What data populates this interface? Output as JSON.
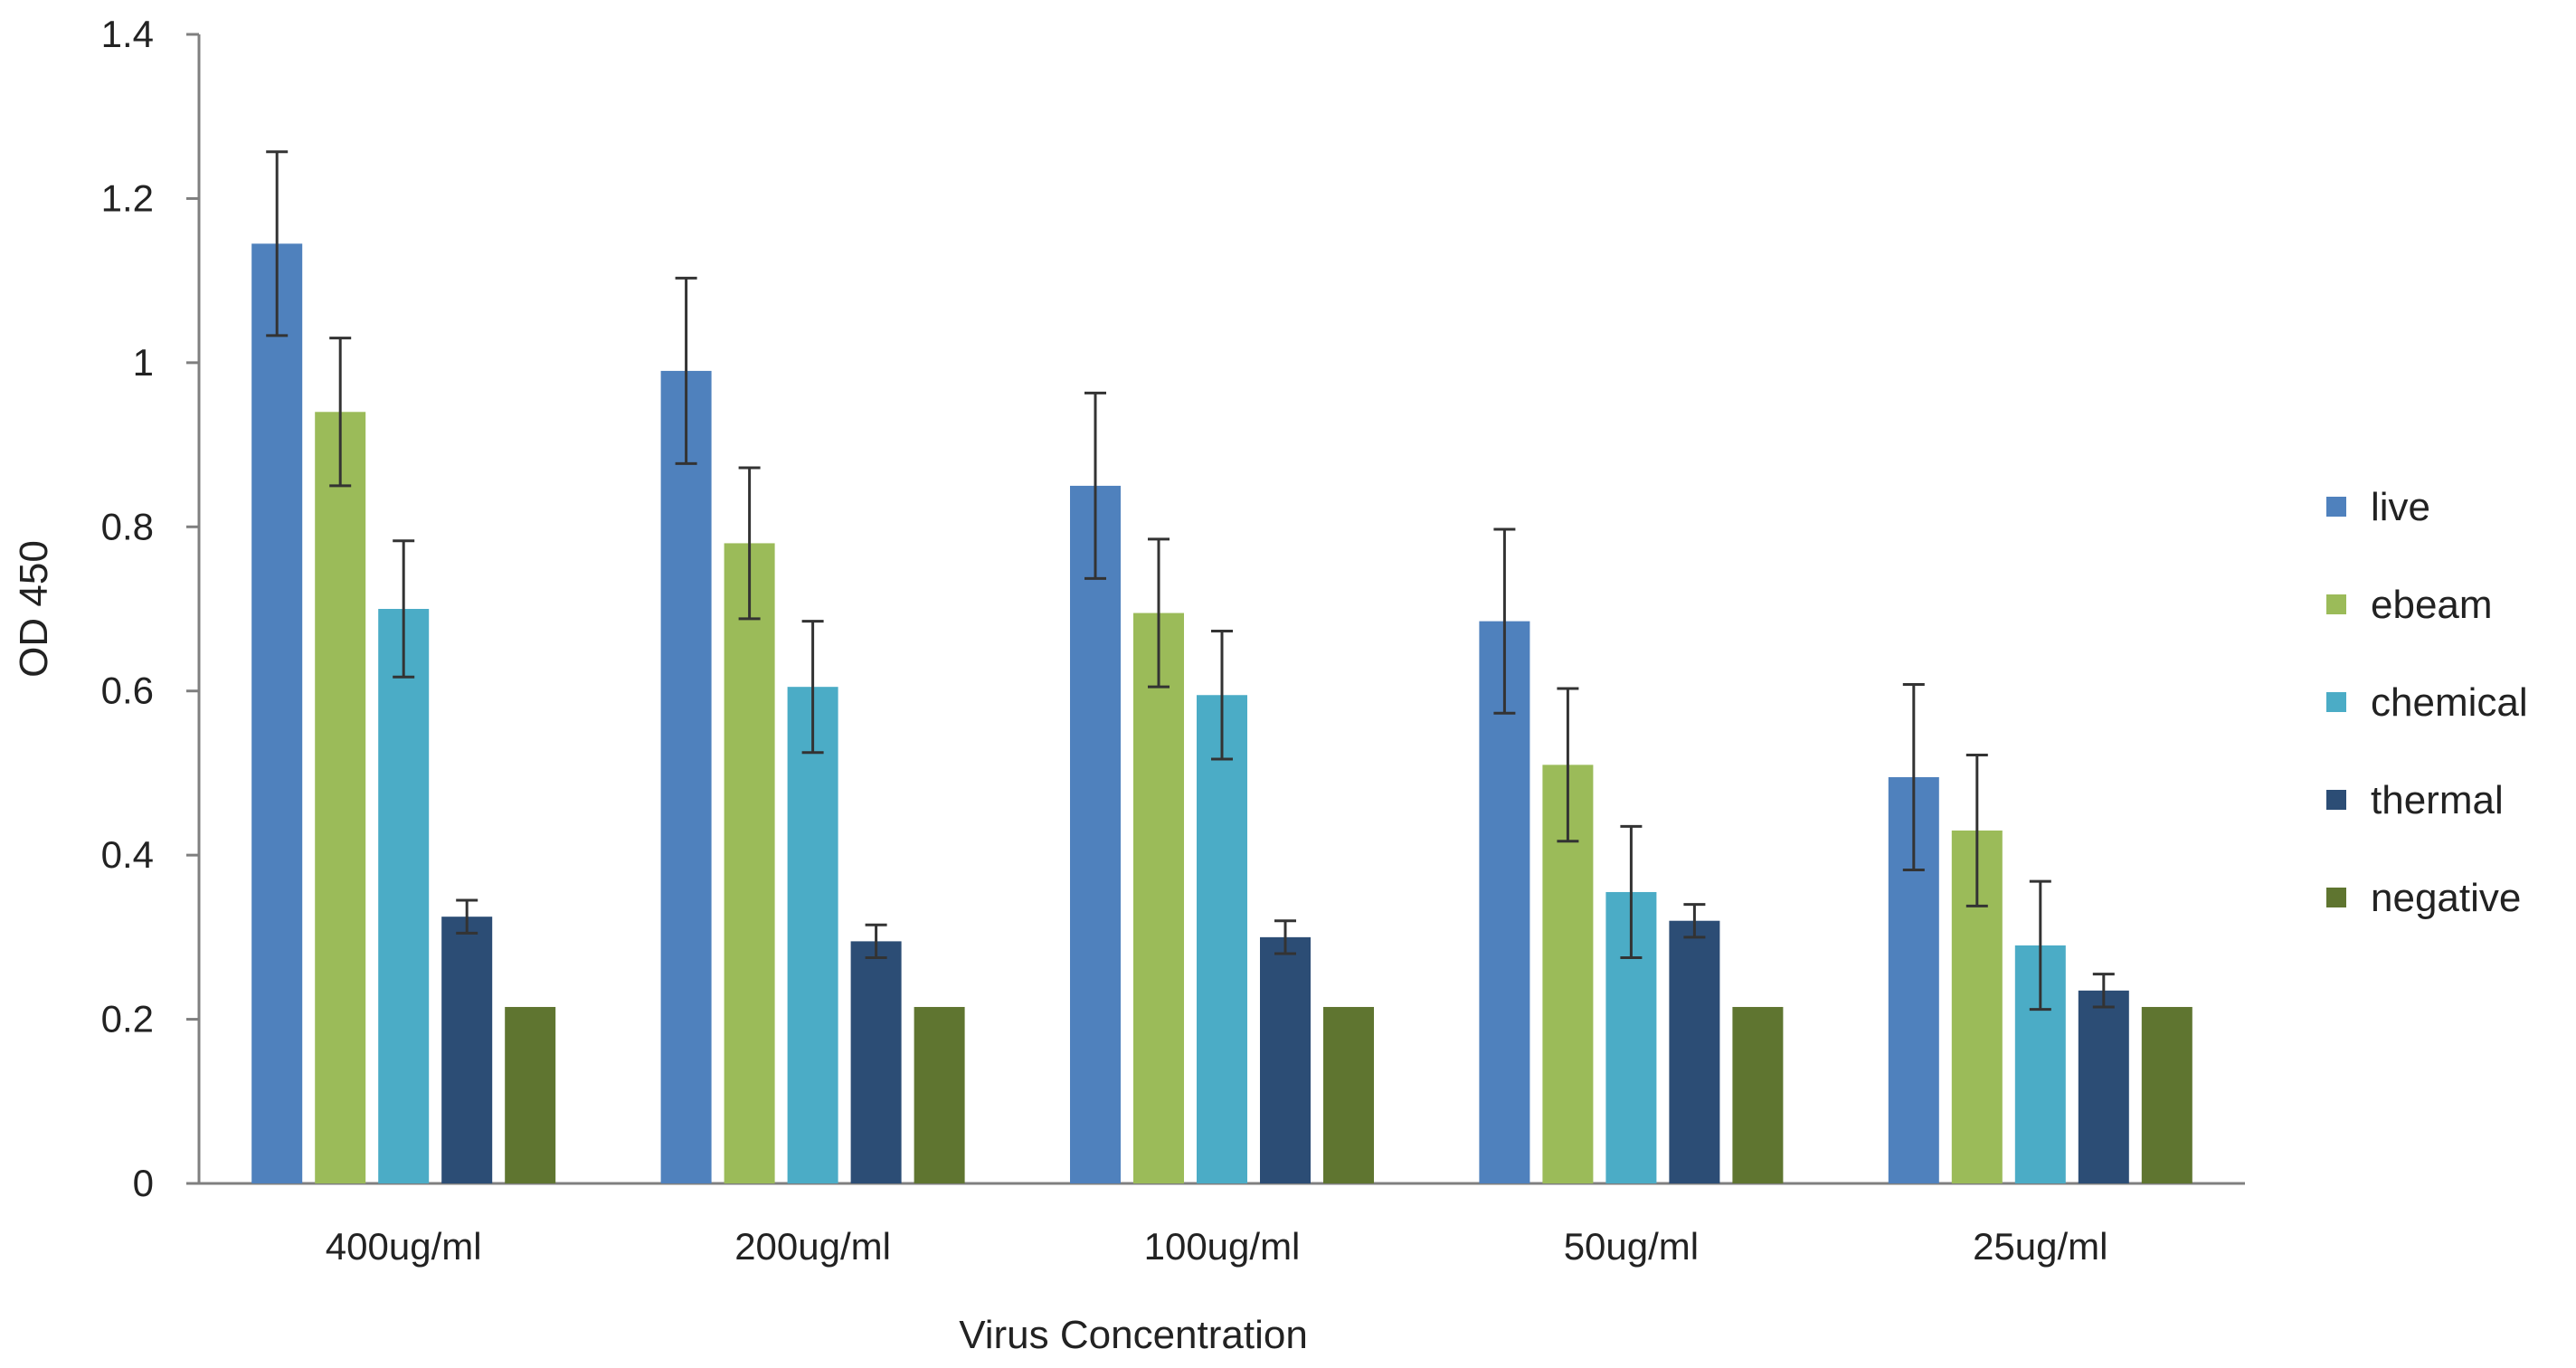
{
  "chart_data": {
    "type": "bar",
    "title": "",
    "xlabel": "Virus Concentration",
    "ylabel": "OD 450",
    "ylim": [
      0,
      1.4
    ],
    "yticks": [
      "0",
      "0.2",
      "0.4",
      "0.6",
      "0.8",
      "1",
      "1.2",
      "1.4"
    ],
    "grid": false,
    "legend_position": "right",
    "categories": [
      "400ug/ml",
      "200ug/ml",
      "100ug/ml",
      "50ug/ml",
      "25ug/ml"
    ],
    "series": [
      {
        "name": "live",
        "color": "#4f81bd",
        "values": [
          1.145,
          0.99,
          0.85,
          0.685,
          0.495
        ],
        "errors": [
          0.112,
          0.113,
          0.113,
          0.112,
          0.113
        ]
      },
      {
        "name": "ebeam",
        "color": "#9bbb59",
        "values": [
          0.94,
          0.78,
          0.695,
          0.51,
          0.43
        ],
        "errors": [
          0.09,
          0.092,
          0.09,
          0.093,
          0.092
        ]
      },
      {
        "name": "chemical",
        "color": "#4bacc6",
        "values": [
          0.7,
          0.605,
          0.595,
          0.355,
          0.29
        ],
        "errors": [
          0.083,
          0.08,
          0.078,
          0.08,
          0.078
        ]
      },
      {
        "name": "thermal",
        "color": "#2c4d75",
        "values": [
          0.325,
          0.295,
          0.3,
          0.32,
          0.235
        ],
        "errors": [
          0.02,
          0.02,
          0.02,
          0.02,
          0.02
        ]
      },
      {
        "name": "negative",
        "color": "#5f7530",
        "values": [
          0.215,
          0.215,
          0.215,
          0.215,
          0.215
        ],
        "errors": [
          0,
          0,
          0,
          0,
          0
        ]
      }
    ]
  }
}
